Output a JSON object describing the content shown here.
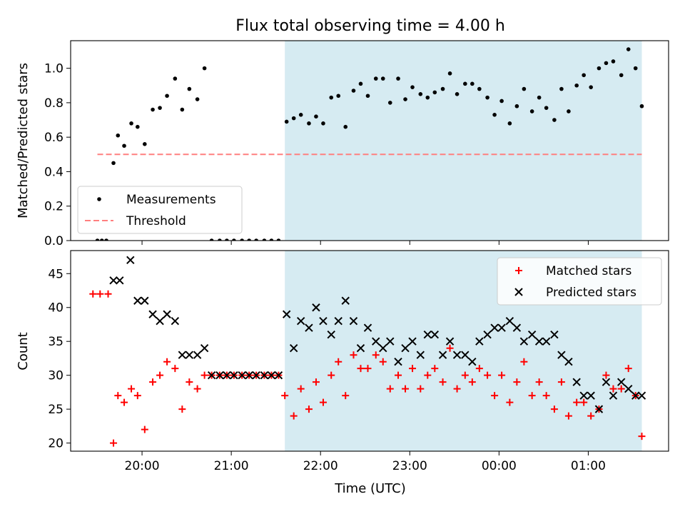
{
  "title": "Flux total observing time = 4.00 h",
  "chart_data": [
    {
      "type": "scatter",
      "panel": "top",
      "ylabel": "Matched/Predicted stars",
      "xlim_hours": [
        19.2,
        25.9
      ],
      "ylim": [
        0,
        1.16
      ],
      "y_ticks": [
        0.0,
        0.2,
        0.4,
        0.6,
        0.8,
        1.0
      ],
      "y_tick_labels": [
        "0.0",
        "0.2",
        "0.4",
        "0.6",
        "0.8",
        "1.0"
      ],
      "x_tick_hours": [
        20,
        21,
        22,
        23,
        24,
        25
      ],
      "shaded_interval_hours": [
        21.6,
        25.6
      ],
      "shade_color": "#add8e6",
      "legend_position": "lower-left",
      "series": [
        {
          "name": "Measurements",
          "marker": "dot",
          "color": "#000000",
          "x": [
            19.5,
            19.55,
            19.6,
            19.68,
            19.73,
            19.8,
            19.88,
            19.95,
            20.03,
            20.12,
            20.2,
            20.28,
            20.37,
            20.45,
            20.53,
            20.62,
            20.7,
            20.78,
            20.87,
            20.95,
            21.03,
            21.12,
            21.2,
            21.28,
            21.37,
            21.45,
            21.53,
            21.62,
            21.7,
            21.78,
            21.87,
            21.95,
            22.03,
            22.12,
            22.2,
            22.28,
            22.37,
            22.45,
            22.53,
            22.62,
            22.7,
            22.78,
            22.87,
            22.95,
            23.03,
            23.12,
            23.2,
            23.28,
            23.37,
            23.45,
            23.53,
            23.62,
            23.7,
            23.78,
            23.87,
            23.95,
            24.03,
            24.12,
            24.2,
            24.28,
            24.37,
            24.45,
            24.53,
            24.62,
            24.7,
            24.78,
            24.87,
            24.95,
            25.03,
            25.12,
            25.2,
            25.28,
            25.37,
            25.45,
            25.53,
            25.6
          ],
          "y": [
            0.0,
            0.0,
            0.0,
            0.45,
            0.61,
            0.55,
            0.68,
            0.66,
            0.56,
            0.76,
            0.77,
            0.84,
            0.94,
            0.76,
            0.88,
            0.82,
            1.0,
            0.0,
            0.0,
            0.0,
            0.0,
            0.0,
            0.0,
            0.0,
            0.0,
            0.0,
            0.0,
            0.69,
            0.71,
            0.73,
            0.68,
            0.72,
            0.68,
            0.83,
            0.84,
            0.66,
            0.87,
            0.91,
            0.84,
            0.94,
            0.94,
            0.8,
            0.94,
            0.82,
            0.89,
            0.85,
            0.83,
            0.86,
            0.88,
            0.97,
            0.85,
            0.91,
            0.91,
            0.88,
            0.83,
            0.73,
            0.81,
            0.68,
            0.78,
            0.88,
            0.75,
            0.83,
            0.77,
            0.7,
            0.88,
            0.75,
            0.9,
            0.96,
            0.89,
            1.0,
            1.03,
            1.04,
            0.96,
            1.11,
            1.0,
            0.78
          ]
        },
        {
          "name": "Threshold",
          "marker": "dashed-line",
          "color": "#ff7f7f",
          "x": [
            19.5,
            25.6
          ],
          "y": [
            0.5,
            0.5
          ]
        }
      ]
    },
    {
      "type": "scatter",
      "panel": "bottom",
      "xlabel": "Time (UTC)",
      "ylabel": "Count",
      "xlim_hours": [
        19.2,
        25.9
      ],
      "ylim": [
        18.8,
        48.4
      ],
      "y_ticks": [
        20,
        25,
        30,
        35,
        40,
        45
      ],
      "y_tick_labels": [
        "20",
        "25",
        "30",
        "35",
        "40",
        "45"
      ],
      "x_tick_hours": [
        20,
        21,
        22,
        23,
        24,
        25
      ],
      "x_tick_labels": [
        "20:00",
        "21:00",
        "22:00",
        "23:00",
        "00:00",
        "01:00"
      ],
      "shaded_interval_hours": [
        21.6,
        25.6
      ],
      "shade_color": "#add8e6",
      "legend_position": "upper-right",
      "series": [
        {
          "name": "Matched stars",
          "marker": "plus",
          "color": "#ff0000",
          "x": [
            19.45,
            19.53,
            19.62,
            19.68,
            19.73,
            19.8,
            19.88,
            19.95,
            20.03,
            20.12,
            20.2,
            20.28,
            20.37,
            20.45,
            20.53,
            20.62,
            20.7,
            20.78,
            20.87,
            20.95,
            21.03,
            21.12,
            21.2,
            21.28,
            21.37,
            21.45,
            21.53,
            21.6,
            21.7,
            21.78,
            21.87,
            21.95,
            22.03,
            22.12,
            22.2,
            22.28,
            22.37,
            22.45,
            22.53,
            22.62,
            22.7,
            22.78,
            22.87,
            22.95,
            23.03,
            23.12,
            23.2,
            23.28,
            23.37,
            23.45,
            23.53,
            23.62,
            23.7,
            23.78,
            23.87,
            23.95,
            24.03,
            24.12,
            24.2,
            24.28,
            24.37,
            24.45,
            24.53,
            24.62,
            24.7,
            24.78,
            24.87,
            24.95,
            25.03,
            25.12,
            25.2,
            25.28,
            25.37,
            25.45,
            25.53,
            25.6
          ],
          "y": [
            42,
            42,
            42,
            20,
            27,
            26,
            28,
            27,
            22,
            29,
            30,
            32,
            31,
            25,
            29,
            28,
            30,
            30,
            30,
            30,
            30,
            30,
            30,
            30,
            30,
            30,
            30,
            27,
            24,
            28,
            25,
            29,
            26,
            30,
            32,
            27,
            33,
            31,
            31,
            33,
            32,
            28,
            30,
            28,
            31,
            28,
            30,
            31,
            29,
            34,
            28,
            30,
            29,
            31,
            30,
            27,
            30,
            26,
            29,
            32,
            27,
            29,
            27,
            25,
            29,
            24,
            26,
            26,
            24,
            25,
            30,
            28,
            28,
            31,
            27,
            21
          ]
        },
        {
          "name": "Predicted stars",
          "marker": "x",
          "color": "#000000",
          "x": [
            19.68,
            19.75,
            19.87,
            19.95,
            20.03,
            20.12,
            20.2,
            20.28,
            20.37,
            20.45,
            20.53,
            20.62,
            20.7,
            20.78,
            20.87,
            20.95,
            21.03,
            21.12,
            21.2,
            21.28,
            21.37,
            21.45,
            21.53,
            21.62,
            21.7,
            21.78,
            21.87,
            21.95,
            22.03,
            22.12,
            22.2,
            22.28,
            22.37,
            22.45,
            22.53,
            22.62,
            22.7,
            22.78,
            22.87,
            22.95,
            23.03,
            23.12,
            23.2,
            23.28,
            23.37,
            23.45,
            23.53,
            23.62,
            23.7,
            23.78,
            23.87,
            23.95,
            24.03,
            24.12,
            24.2,
            24.28,
            24.37,
            24.45,
            24.53,
            24.62,
            24.7,
            24.78,
            24.87,
            24.95,
            25.03,
            25.12,
            25.2,
            25.28,
            25.37,
            25.45,
            25.53,
            25.6
          ],
          "y": [
            44,
            44,
            47,
            41,
            41,
            39,
            38,
            39,
            38,
            33,
            33,
            33,
            34,
            30,
            30,
            30,
            30,
            30,
            30,
            30,
            30,
            30,
            30,
            39,
            34,
            38,
            37,
            40,
            38,
            36,
            38,
            41,
            38,
            34,
            37,
            35,
            34,
            35,
            32,
            34,
            35,
            33,
            36,
            36,
            33,
            35,
            33,
            33,
            32,
            35,
            36,
            37,
            37,
            38,
            37,
            35,
            36,
            35,
            35,
            36,
            33,
            32,
            29,
            27,
            27,
            25,
            29,
            27,
            29,
            28,
            27,
            27
          ]
        }
      ]
    }
  ]
}
